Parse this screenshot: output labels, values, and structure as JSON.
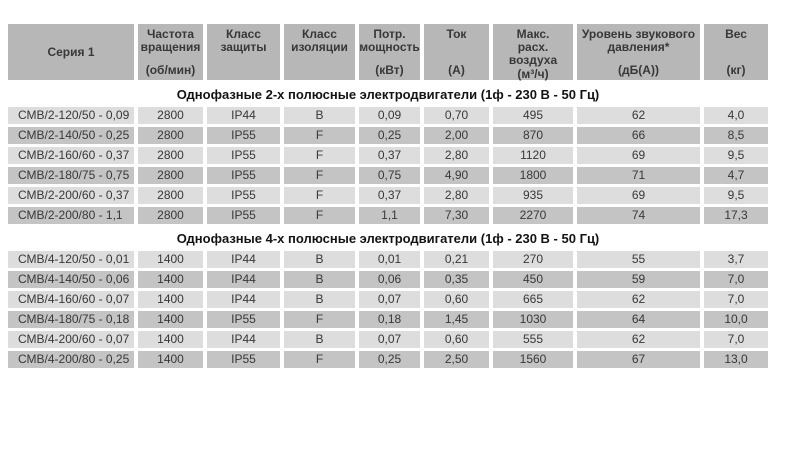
{
  "palette": {
    "header_bg": "#b7b7b7",
    "row_light": "#dddddd",
    "row_dark": "#c4c4c4",
    "cell_text": "#383838",
    "title_text": "#141414"
  },
  "table": {
    "columns": [
      {
        "label": "Серия 1",
        "unit": ""
      },
      {
        "label": "Частота\nвращения",
        "unit": "(об/мин)"
      },
      {
        "label": "Класс\nзащиты",
        "unit": ""
      },
      {
        "label": "Класс\nизоляции",
        "unit": ""
      },
      {
        "label": "Потр.\nмощность",
        "unit": "(кВт)"
      },
      {
        "label": "Ток",
        "unit": "(А)"
      },
      {
        "label": "Макс.\nрасх.\nвоздуха",
        "unit": "(м³/ч)"
      },
      {
        "label": "Уровень звукового\nдавления*",
        "unit": "(дБ(А))"
      },
      {
        "label": "Вес",
        "unit": "(кг)"
      }
    ],
    "sections": [
      {
        "title": "Однофазные 2-х полюсные электродвигатели (1ф - 230 В - 50 Гц)",
        "rows": [
          [
            "СМВ/2-120/50 - 0,09",
            "2800",
            "IP44",
            "B",
            "0,09",
            "0,70",
            "495",
            "62",
            "4,0"
          ],
          [
            "СМВ/2-140/50 - 0,25",
            "2800",
            "IP55",
            "F",
            "0,25",
            "2,00",
            "870",
            "66",
            "8,5"
          ],
          [
            "СМВ/2-160/60 - 0,37",
            "2800",
            "IP55",
            "F",
            "0,37",
            "2,80",
            "1120",
            "69",
            "9,5"
          ],
          [
            "СМВ/2-180/75 - 0,75",
            "2800",
            "IP55",
            "F",
            "0,75",
            "4,90",
            "1800",
            "71",
            "4,7"
          ],
          [
            "СМВ/2-200/60 - 0,37",
            "2800",
            "IP55",
            "F",
            "0,37",
            "2,80",
            "935",
            "69",
            "9,5"
          ],
          [
            "СМВ/2-200/80 - 1,1",
            "2800",
            "IP55",
            "F",
            "1,1",
            "7,30",
            "2270",
            "74",
            "17,3"
          ]
        ]
      },
      {
        "title": "Однофазные 4-х полюсные электродвигатели (1ф - 230 В - 50 Гц)",
        "rows": [
          [
            "СМВ/4-120/50 - 0,01",
            "1400",
            "IP44",
            "B",
            "0,01",
            "0,21",
            "270",
            "55",
            "3,7"
          ],
          [
            "СМВ/4-140/50 - 0,06",
            "1400",
            "IP44",
            "B",
            "0,06",
            "0,35",
            "450",
            "59",
            "7,0"
          ],
          [
            "СМВ/4-160/60 - 0,07",
            "1400",
            "IP44",
            "B",
            "0,07",
            "0,60",
            "665",
            "62",
            "7,0"
          ],
          [
            "СМВ/4-180/75 - 0,18",
            "1400",
            "IP55",
            "F",
            "0,18",
            "1,45",
            "1030",
            "64",
            "10,0"
          ],
          [
            "СМВ/4-200/60 - 0,07",
            "1400",
            "IP44",
            "B",
            "0,07",
            "0,60",
            "555",
            "62",
            "7,0"
          ],
          [
            "СМВ/4-200/80 - 0,25",
            "1400",
            "IP55",
            "F",
            "0,25",
            "2,50",
            "1560",
            "67",
            "13,0"
          ]
        ]
      }
    ]
  }
}
